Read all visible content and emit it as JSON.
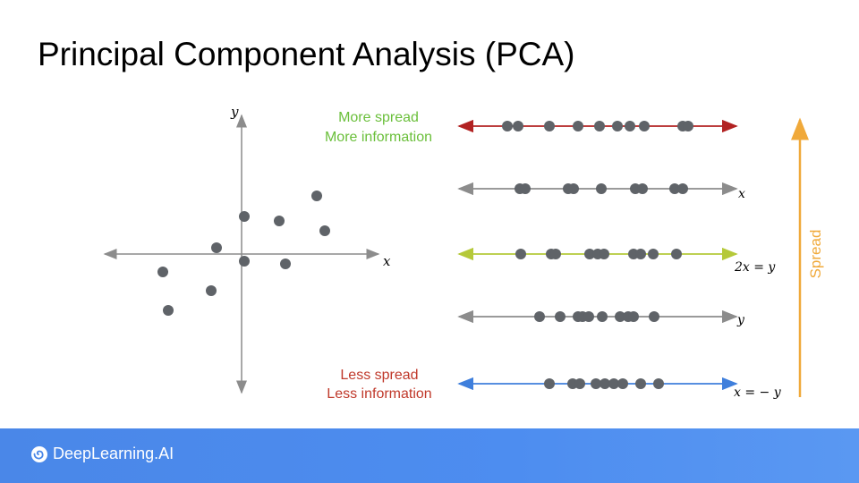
{
  "slide": {
    "title": "Principal Component Analysis (PCA)"
  },
  "scatter": {
    "x_axis_label": "x",
    "y_axis_label": "y"
  },
  "projections": [
    {
      "label": "",
      "color": "#b22222"
    },
    {
      "label": "x",
      "color": "#8c8c8c"
    },
    {
      "label": "2x = y",
      "color": "#b5c93a"
    },
    {
      "label": "y",
      "color": "#8c8c8c"
    },
    {
      "label": "x = − y",
      "color": "#3f7fdc"
    }
  ],
  "annotations": {
    "more_spread": "More spread",
    "more_information": "More information",
    "less_spread": "Less spread",
    "less_information": "Less information",
    "spread": "Spread"
  },
  "colors": {
    "more_text": "#6abf3a",
    "less_text": "#c0392b",
    "spread_arrow": "#f0a93a",
    "point": "#5f6368"
  },
  "footer": {
    "brand": "DeepLearning.AI"
  }
}
